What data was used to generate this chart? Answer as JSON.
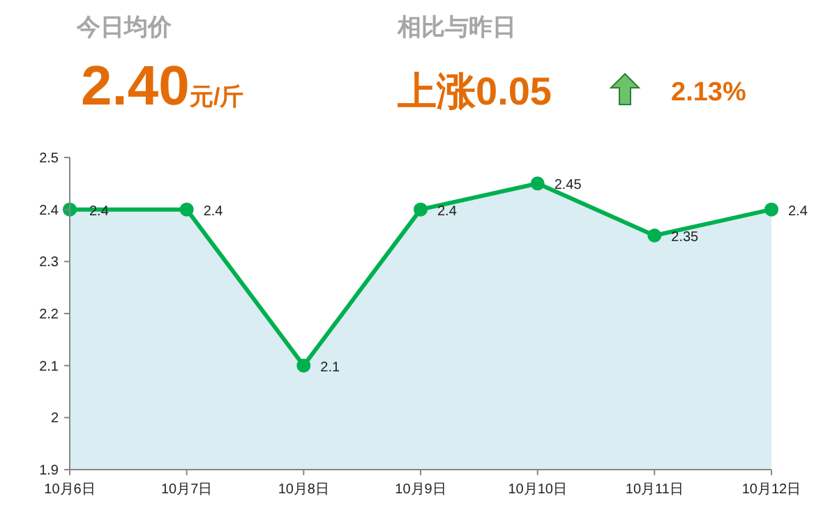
{
  "chart_data": {
    "type": "area",
    "title": "今日均价",
    "subtitle": "相比与昨日",
    "annotations": [
      "2.40",
      "元/斤",
      "上涨0.05",
      "2.13%"
    ],
    "categories": [
      "10月6日",
      "10月7日",
      "10月8日",
      "10月9日",
      "10月10日",
      "10月11日",
      "10月12日"
    ],
    "series": [
      {
        "color": "#00b050",
        "values": [
          2.4,
          2.4,
          2.1,
          2.4,
          2.45,
          2.35,
          2.4
        ]
      }
    ],
    "data_labels": true,
    "ylim": [
      1.9,
      2.5
    ],
    "yticks": [
      1.9,
      2,
      2.1,
      2.2,
      2.3,
      2.4,
      2.5
    ],
    "marker": "circle",
    "grid": false
  }
}
